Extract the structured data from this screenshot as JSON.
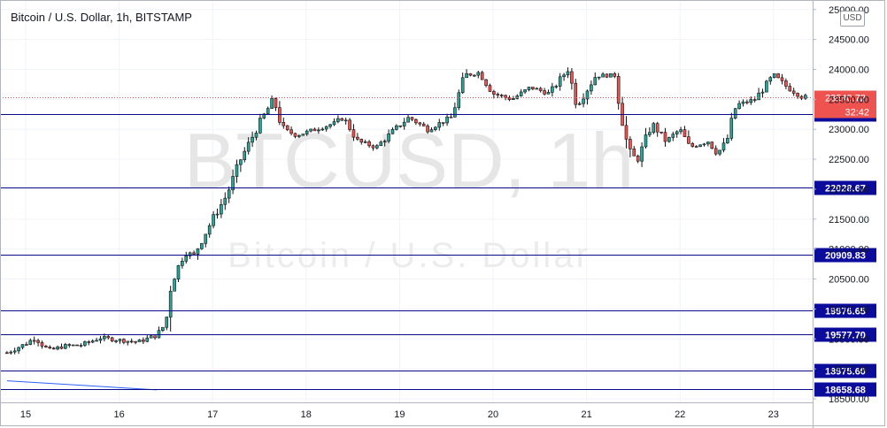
{
  "header": {
    "symbol": "Bitcoin / U.S. Dollar",
    "interval": "1h",
    "exchange": "BITSTAMP",
    "currency_badge": "USD"
  },
  "watermark": {
    "ticker": "BTCUSD, 1h",
    "name": "Bitcoin / U.S. Dollar"
  },
  "colors": {
    "up": "#26a69a",
    "down": "#ef5350",
    "candle_border": "#111111",
    "level_line": "#0a0a8c",
    "level_label_bg": "#0c0c9c",
    "last_price_bg": "#ef5350",
    "trend_line": "#2962ff"
  },
  "last_price": {
    "value": "23540.72",
    "countdown": "32:42"
  },
  "chart_data": {
    "type": "candlestick",
    "y_axis": {
      "range": [
        18500,
        25100
      ],
      "tick_labels": [
        "25000.00",
        "24500.00",
        "24000.00",
        "23500.00",
        "23000.00",
        "22500.00",
        "22000.00",
        "21500.00",
        "21000.00",
        "20500.00",
        "20000.00",
        "19500.00",
        "19000.00",
        "18500.00"
      ]
    },
    "x_axis": {
      "tick_labels": [
        "15",
        "16",
        "17",
        "18",
        "19",
        "20",
        "21",
        "22",
        "23"
      ],
      "range_days": [
        14.8,
        23.6
      ]
    },
    "horizontal_levels": [
      {
        "value": 23254.72,
        "label": "23254.72"
      },
      {
        "value": 22028.67,
        "label": "22028.67"
      },
      {
        "value": 20909.83,
        "label": "20909.83"
      },
      {
        "value": 19976.65,
        "label": "19976.65"
      },
      {
        "value": 19577.7,
        "label": "19577.70"
      },
      {
        "value": 18975.6,
        "label": "18975.60"
      },
      {
        "value": 18658.68,
        "label": "18658.68"
      }
    ],
    "trend_line": {
      "start": [
        14.8,
        18800
      ],
      "end": [
        16.4,
        18650
      ]
    },
    "last_price": 23540.72,
    "anchors": [
      {
        "day": 14.8,
        "price": 19270
      },
      {
        "day": 15.0,
        "price": 19420
      },
      {
        "day": 15.1,
        "price": 19520
      },
      {
        "day": 15.25,
        "price": 19300
      },
      {
        "day": 15.4,
        "price": 19380
      },
      {
        "day": 15.6,
        "price": 19400
      },
      {
        "day": 15.8,
        "price": 19520
      },
      {
        "day": 16.0,
        "price": 19480
      },
      {
        "day": 16.2,
        "price": 19450
      },
      {
        "day": 16.4,
        "price": 19560
      },
      {
        "day": 16.5,
        "price": 19760
      },
      {
        "day": 16.55,
        "price": 20400
      },
      {
        "day": 16.7,
        "price": 20950
      },
      {
        "day": 16.8,
        "price": 20900
      },
      {
        "day": 17.0,
        "price": 21500
      },
      {
        "day": 17.15,
        "price": 21900
      },
      {
        "day": 17.3,
        "price": 22500
      },
      {
        "day": 17.5,
        "price": 23100
      },
      {
        "day": 17.65,
        "price": 23500
      },
      {
        "day": 17.75,
        "price": 23000
      },
      {
        "day": 17.9,
        "price": 22900
      },
      {
        "day": 18.1,
        "price": 23000
      },
      {
        "day": 18.3,
        "price": 23100
      },
      {
        "day": 18.4,
        "price": 23200
      },
      {
        "day": 18.55,
        "price": 22800
      },
      {
        "day": 18.75,
        "price": 22700
      },
      {
        "day": 18.95,
        "price": 23000
      },
      {
        "day": 19.1,
        "price": 23200
      },
      {
        "day": 19.3,
        "price": 23000
      },
      {
        "day": 19.55,
        "price": 23200
      },
      {
        "day": 19.7,
        "price": 23900
      },
      {
        "day": 19.85,
        "price": 23950
      },
      {
        "day": 20.0,
        "price": 23600
      },
      {
        "day": 20.2,
        "price": 23500
      },
      {
        "day": 20.4,
        "price": 23700
      },
      {
        "day": 20.6,
        "price": 23600
      },
      {
        "day": 20.8,
        "price": 24000
      },
      {
        "day": 20.9,
        "price": 23400
      },
      {
        "day": 21.1,
        "price": 23900
      },
      {
        "day": 21.3,
        "price": 23900
      },
      {
        "day": 21.45,
        "price": 22600
      },
      {
        "day": 21.55,
        "price": 22500
      },
      {
        "day": 21.7,
        "price": 23100
      },
      {
        "day": 21.85,
        "price": 22800
      },
      {
        "day": 22.0,
        "price": 23000
      },
      {
        "day": 22.1,
        "price": 22700
      },
      {
        "day": 22.3,
        "price": 22800
      },
      {
        "day": 22.4,
        "price": 22600
      },
      {
        "day": 22.5,
        "price": 22800
      },
      {
        "day": 22.6,
        "price": 23400
      },
      {
        "day": 22.8,
        "price": 23500
      },
      {
        "day": 23.0,
        "price": 23900
      },
      {
        "day": 23.15,
        "price": 23700
      },
      {
        "day": 23.3,
        "price": 23550
      },
      {
        "day": 23.35,
        "price": 23540
      }
    ]
  }
}
